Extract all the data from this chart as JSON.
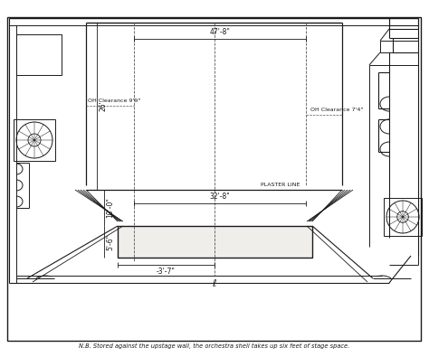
{
  "bg_color": "#ffffff",
  "outer_bg": "#f5f3f0",
  "line_color": "#1a1a1a",
  "dashed_color": "#555555",
  "note_text": "N.B. Stored against the upstage wall, the orchestra shell takes up six feet of stage space.",
  "dim_47_8": "47'-8\"",
  "dim_26": "26'",
  "dim_32_8": "32'-8\"",
  "dim_10_0": "10'-0\"",
  "dim_5_6": "5'-6\"",
  "dim_neg_3_7": "-3'-7\"",
  "oh_clear_left": "OH Clearance 9'9\"",
  "oh_clear_right": "OH Clearance 7'4\"",
  "plaster_line": "PLASTER LINE"
}
